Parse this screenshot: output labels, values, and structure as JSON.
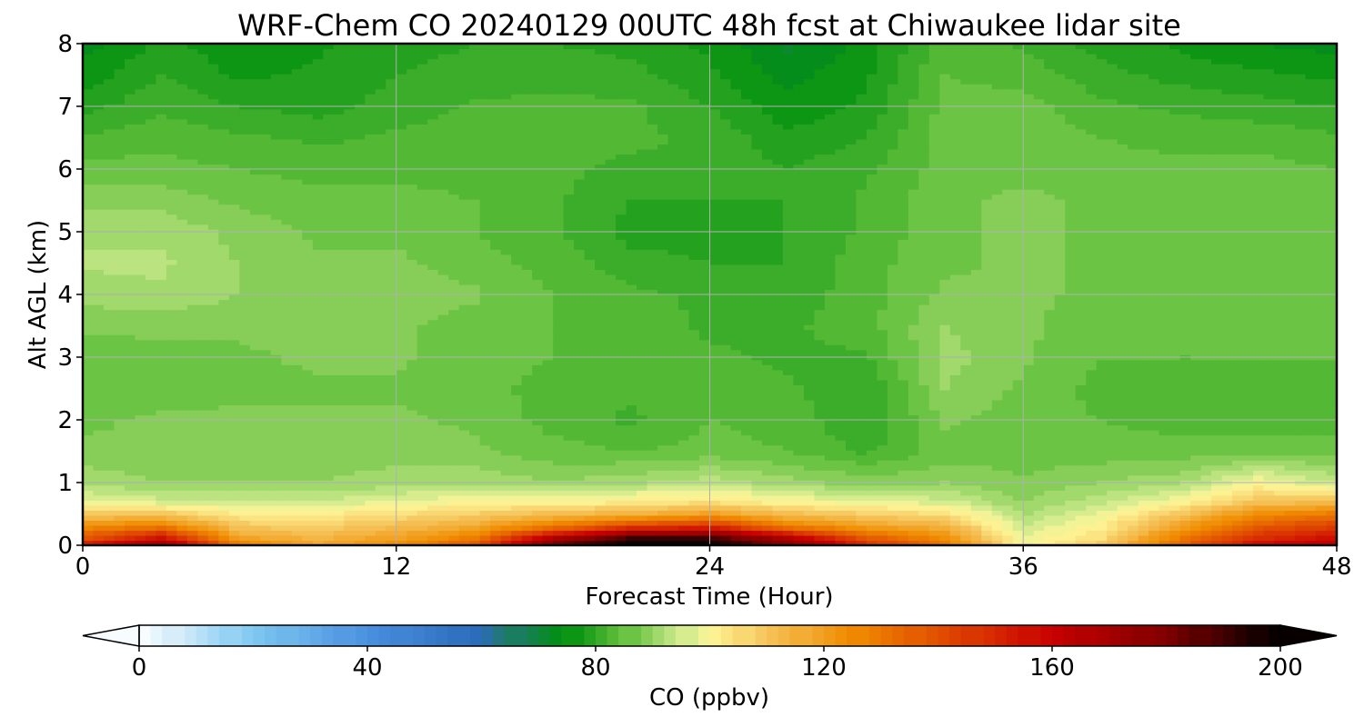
{
  "chart_data": {
    "type": "heatmap",
    "title": "WRF-Chem CO  20240129 00UTC 48h fcst at Chiwaukee lidar site",
    "xlabel": "Forecast Time (Hour)",
    "ylabel": "Alt AGL (km)",
    "xlim": [
      0,
      48
    ],
    "ylim": [
      0,
      8
    ],
    "x_ticks": [
      "0",
      "12",
      "24",
      "36",
      "48"
    ],
    "y_ticks": [
      "0",
      "1",
      "2",
      "3",
      "4",
      "5",
      "6",
      "7",
      "8"
    ],
    "grid": true,
    "colorbar": {
      "label": "CO  (ppbv)",
      "range": [
        0,
        200
      ],
      "ticks": [
        "0",
        "40",
        "80",
        "120",
        "160",
        "200"
      ],
      "extend": "both",
      "colors": [
        {
          "v": 0,
          "c": "#ffffff"
        },
        {
          "v": 20,
          "c": "#7ec8f0"
        },
        {
          "v": 40,
          "c": "#4a90e0"
        },
        {
          "v": 60,
          "c": "#2a6bb8"
        },
        {
          "v": 65,
          "c": "#1f7a6a"
        },
        {
          "v": 75,
          "c": "#00900f"
        },
        {
          "v": 85,
          "c": "#5fbf3a"
        },
        {
          "v": 95,
          "c": "#c8e88a"
        },
        {
          "v": 100,
          "c": "#fff79a"
        },
        {
          "v": 110,
          "c": "#f5c45a"
        },
        {
          "v": 125,
          "c": "#f08c00"
        },
        {
          "v": 145,
          "c": "#dc3c00"
        },
        {
          "v": 160,
          "c": "#c80000"
        },
        {
          "v": 180,
          "c": "#800000"
        },
        {
          "v": 200,
          "c": "#000000"
        }
      ]
    },
    "times": [
      0,
      3,
      6,
      9,
      12,
      15,
      18,
      21,
      24,
      27,
      30,
      33,
      36,
      39,
      42,
      45,
      48
    ],
    "altitudes_km": [
      0,
      0.1,
      0.3,
      0.5,
      0.7,
      1,
      1.5,
      2,
      2.5,
      3,
      3.5,
      4,
      4.5,
      5,
      5.5,
      6,
      6.5,
      7,
      7.5,
      8
    ],
    "co_ppbv": [
      [
        155,
        175,
        130,
        118,
        125,
        140,
        185,
        200,
        200,
        180,
        150,
        130,
        100,
        110,
        135,
        160,
        165
      ],
      [
        140,
        160,
        120,
        115,
        120,
        130,
        170,
        195,
        195,
        170,
        140,
        125,
        98,
        105,
        130,
        150,
        158
      ],
      [
        125,
        130,
        110,
        108,
        112,
        118,
        130,
        145,
        150,
        130,
        120,
        115,
        95,
        102,
        120,
        138,
        145
      ],
      [
        110,
        110,
        102,
        102,
        105,
        108,
        112,
        115,
        120,
        112,
        108,
        105,
        92,
        98,
        110,
        125,
        130
      ],
      [
        98,
        96,
        95,
        95,
        98,
        100,
        100,
        102,
        104,
        100,
        98,
        96,
        90,
        94,
        100,
        110,
        112
      ],
      [
        92,
        90,
        90,
        90,
        91,
        92,
        90,
        92,
        94,
        91,
        89,
        90,
        88,
        90,
        92,
        100,
        95
      ],
      [
        88,
        88,
        89,
        89,
        89,
        88,
        86,
        85,
        86,
        85,
        82,
        86,
        86,
        86,
        86,
        86,
        86
      ],
      [
        87,
        88,
        88,
        88,
        88,
        87,
        84,
        82,
        85,
        84,
        80,
        88,
        86,
        85,
        84,
        84,
        84
      ],
      [
        85,
        86,
        87,
        87,
        87,
        86,
        84,
        83,
        84,
        83,
        80,
        90,
        87,
        84,
        83,
        83,
        84
      ],
      [
        86,
        87,
        87,
        88,
        88,
        86,
        85,
        84,
        83,
        82,
        82,
        91,
        88,
        85,
        85,
        85,
        85
      ],
      [
        88,
        88,
        88,
        89,
        88,
        86,
        85,
        84,
        82,
        82,
        84,
        90,
        88,
        86,
        86,
        86,
        86
      ],
      [
        91,
        92,
        90,
        89,
        90,
        88,
        85,
        83,
        82,
        81,
        84,
        88,
        88,
        87,
        87,
        87,
        87
      ],
      [
        93,
        93,
        90,
        88,
        88,
        86,
        84,
        81,
        80,
        80,
        84,
        87,
        88,
        87,
        87,
        87,
        87
      ],
      [
        92,
        92,
        89,
        87,
        87,
        85,
        83,
        79,
        79,
        80,
        83,
        87,
        88,
        87,
        87,
        87,
        87
      ],
      [
        89,
        89,
        87,
        86,
        86,
        85,
        83,
        80,
        80,
        80,
        83,
        87,
        88,
        87,
        87,
        87,
        87
      ],
      [
        86,
        86,
        85,
        84,
        84,
        84,
        83,
        82,
        82,
        80,
        82,
        86,
        87,
        86,
        86,
        86,
        85
      ],
      [
        83,
        84,
        83,
        82,
        83,
        84,
        83,
        83,
        82,
        78,
        80,
        86,
        87,
        85,
        84,
        84,
        83
      ],
      [
        79,
        82,
        80,
        79,
        81,
        83,
        83,
        83,
        80,
        76,
        78,
        86,
        86,
        83,
        82,
        81,
        80
      ],
      [
        76,
        80,
        77,
        78,
        80,
        81,
        82,
        81,
        78,
        74,
        77,
        85,
        84,
        81,
        79,
        78,
        77
      ],
      [
        74,
        78,
        76,
        77,
        79,
        80,
        80,
        79,
        77,
        72,
        76,
        84,
        82,
        79,
        77,
        75,
        74
      ]
    ]
  }
}
